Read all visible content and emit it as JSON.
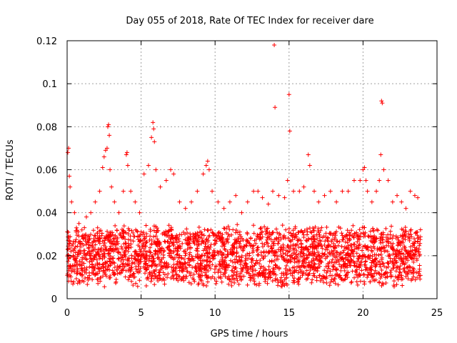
{
  "chart_data": {
    "type": "scatter",
    "title": "Day 055 of 2018, Rate Of TEC Index for receiver dare",
    "xlabel": "GPS time / hours",
    "ylabel": "ROTI / TECUs",
    "xlim": [
      0,
      25
    ],
    "ylim": [
      0,
      0.12
    ],
    "xticks": [
      0,
      5,
      10,
      15,
      20,
      25
    ],
    "xtick_labels": [
      "0",
      "5",
      "10",
      "15",
      "20",
      "25"
    ],
    "yticks": [
      0,
      0.02,
      0.04,
      0.06,
      0.08,
      0.1,
      0.12
    ],
    "ytick_labels": [
      "0",
      "0.02",
      "0.04",
      "0.06",
      "0.08",
      "0.1",
      "0.12"
    ],
    "grid": true,
    "marker": "+",
    "color": "#ff0000",
    "series": [
      {
        "name": "ROTI",
        "x": [
          0.05,
          0.1,
          0.15,
          0.2,
          0.3,
          0.5,
          0.8,
          1.0,
          1.3,
          1.6,
          1.9,
          2.2,
          2.4,
          2.5,
          2.6,
          2.7,
          2.75,
          2.8,
          2.85,
          2.9,
          3.0,
          3.2,
          3.5,
          3.8,
          4.0,
          4.05,
          4.1,
          4.3,
          4.6,
          4.9,
          5.2,
          5.5,
          5.7,
          5.8,
          5.85,
          5.9,
          6.0,
          6.3,
          6.7,
          7.0,
          7.2,
          7.6,
          8.0,
          8.4,
          8.8,
          9.2,
          9.4,
          9.5,
          9.6,
          9.8,
          10.2,
          10.6,
          11.0,
          11.4,
          11.8,
          12.2,
          12.6,
          12.9,
          13.2,
          13.6,
          13.9,
          14.0,
          14.05,
          14.3,
          14.7,
          14.9,
          15.0,
          15.05,
          15.3,
          15.7,
          16.0,
          16.3,
          16.4,
          16.7,
          17.0,
          17.4,
          17.8,
          18.2,
          18.6,
          19.0,
          19.4,
          19.8,
          20.0,
          20.1,
          20.2,
          20.3,
          20.6,
          20.9,
          21.1,
          21.2,
          21.25,
          21.3,
          21.4,
          21.7,
          22.0,
          22.3,
          22.6,
          22.9,
          23.2,
          23.5,
          23.7
        ],
        "y": [
          0.068,
          0.07,
          0.057,
          0.052,
          0.045,
          0.04,
          0.035,
          0.032,
          0.038,
          0.04,
          0.045,
          0.05,
          0.061,
          0.066,
          0.069,
          0.07,
          0.08,
          0.081,
          0.076,
          0.06,
          0.052,
          0.045,
          0.04,
          0.05,
          0.067,
          0.068,
          0.062,
          0.05,
          0.045,
          0.04,
          0.058,
          0.062,
          0.075,
          0.082,
          0.079,
          0.073,
          0.06,
          0.052,
          0.055,
          0.06,
          0.058,
          0.045,
          0.042,
          0.045,
          0.05,
          0.058,
          0.062,
          0.064,
          0.06,
          0.05,
          0.045,
          0.042,
          0.045,
          0.048,
          0.04,
          0.045,
          0.05,
          0.05,
          0.047,
          0.044,
          0.05,
          0.118,
          0.089,
          0.048,
          0.047,
          0.055,
          0.095,
          0.078,
          0.05,
          0.05,
          0.052,
          0.067,
          0.062,
          0.05,
          0.045,
          0.048,
          0.05,
          0.045,
          0.05,
          0.05,
          0.055,
          0.055,
          0.06,
          0.061,
          0.055,
          0.05,
          0.045,
          0.05,
          0.055,
          0.067,
          0.092,
          0.091,
          0.06,
          0.055,
          0.045,
          0.048,
          0.045,
          0.042,
          0.05,
          0.048,
          0.047
        ]
      }
    ],
    "dense_band": {
      "description_values": "bulk of samples",
      "x_range": [
        0,
        23.9
      ],
      "y_typical_range": [
        0.005,
        0.035
      ]
    }
  }
}
